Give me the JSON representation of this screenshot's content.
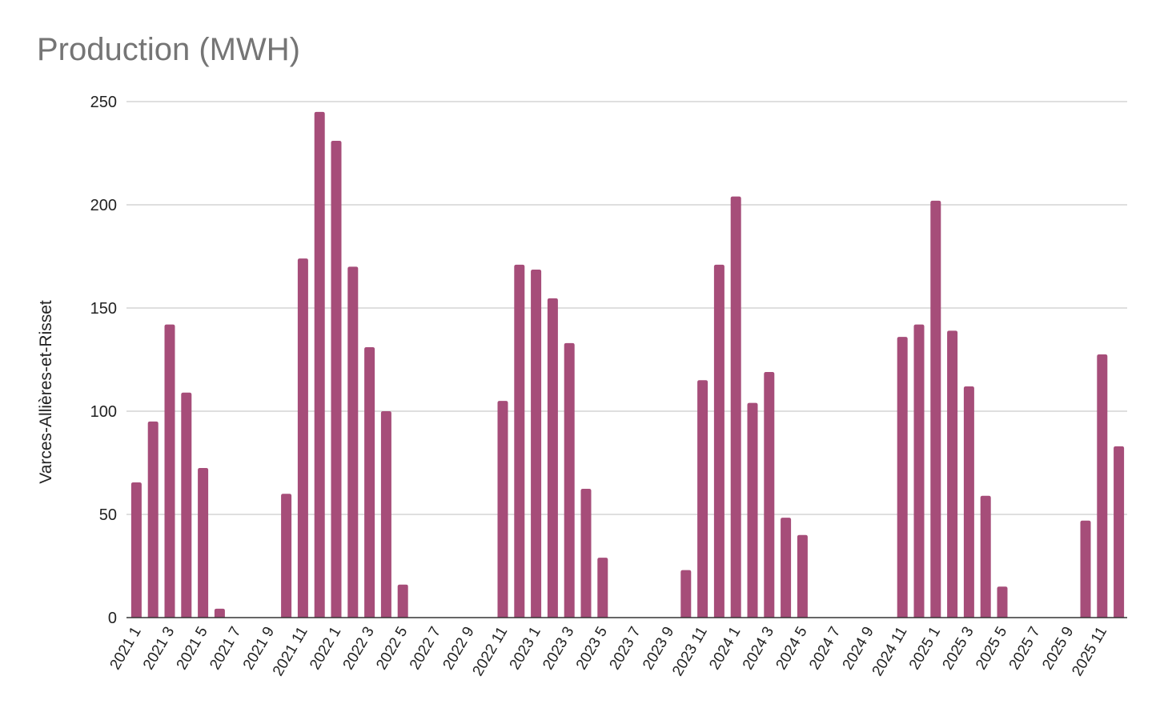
{
  "chart_data": {
    "type": "bar",
    "title": "Production (MWH)",
    "xlabel": "",
    "ylabel": "Varces-Allières-et-Risset",
    "ylim": [
      0,
      250
    ],
    "yticks": [
      0,
      50,
      100,
      150,
      200,
      250
    ],
    "grid": true,
    "legend": "none",
    "bar_color": "#a64d79",
    "categories": [
      "2021 1",
      "2021 2",
      "2021 3",
      "2021 4",
      "2021 5",
      "2021 6",
      "2021 7",
      "2021 8",
      "2021 9",
      "2021 10",
      "2021 11",
      "2021 12",
      "2022 1",
      "2022 2",
      "2022 3",
      "2022 4",
      "2022 5",
      "2022 6",
      "2022 7",
      "2022 8",
      "2022 9",
      "2022 10",
      "2022 11",
      "2022 12",
      "2023 1",
      "2023 2",
      "2023 3",
      "2023 4",
      "2023 5",
      "2023 6",
      "2023 7",
      "2023 8",
      "2023 9",
      "2023 10",
      "2023 11",
      "2023 12",
      "2024 1",
      "2024 2",
      "2024 3",
      "2024 4",
      "2024 5",
      "2024 6",
      "2024 7",
      "2024 8",
      "2024 9",
      "2024 10",
      "2024 11",
      "2024 12",
      "2025 1",
      "2025 2",
      "2025 3",
      "2025 4",
      "2025 5",
      "2025 6",
      "2025 7",
      "2025 8",
      "2025 9",
      "2025 10",
      "2025 11",
      "2025 12"
    ],
    "tick_labels": [
      "2021 1",
      "2021 3",
      "2021 5",
      "2021 7",
      "2021 9",
      "2021 11",
      "2022 1",
      "2022 3",
      "2022 5",
      "2022 7",
      "2022 9",
      "2022 11",
      "2023 1",
      "2023 3",
      "2023 5",
      "2023 7",
      "2023 9",
      "2023 11",
      "2024 1",
      "2024 3",
      "2024 5",
      "2024 7",
      "2024 9",
      "2024 11",
      "2025 1",
      "2025 3",
      "2025 5",
      "2025 7",
      "2025 9",
      "2025 11"
    ],
    "values": [
      65.5,
      95,
      142,
      109,
      72.5,
      4.3,
      0,
      0,
      0,
      60,
      174,
      245,
      231,
      170,
      131,
      100,
      16,
      0,
      0,
      0,
      0,
      0,
      105,
      171,
      168.6,
      154.7,
      133,
      62.4,
      29,
      0,
      0,
      0,
      0,
      23,
      115,
      171,
      204,
      104,
      119,
      48.4,
      40,
      0,
      0,
      0,
      0,
      0,
      136,
      142,
      202,
      139,
      112,
      59,
      15,
      0,
      0,
      0,
      0,
      47,
      127.5,
      83
    ]
  }
}
